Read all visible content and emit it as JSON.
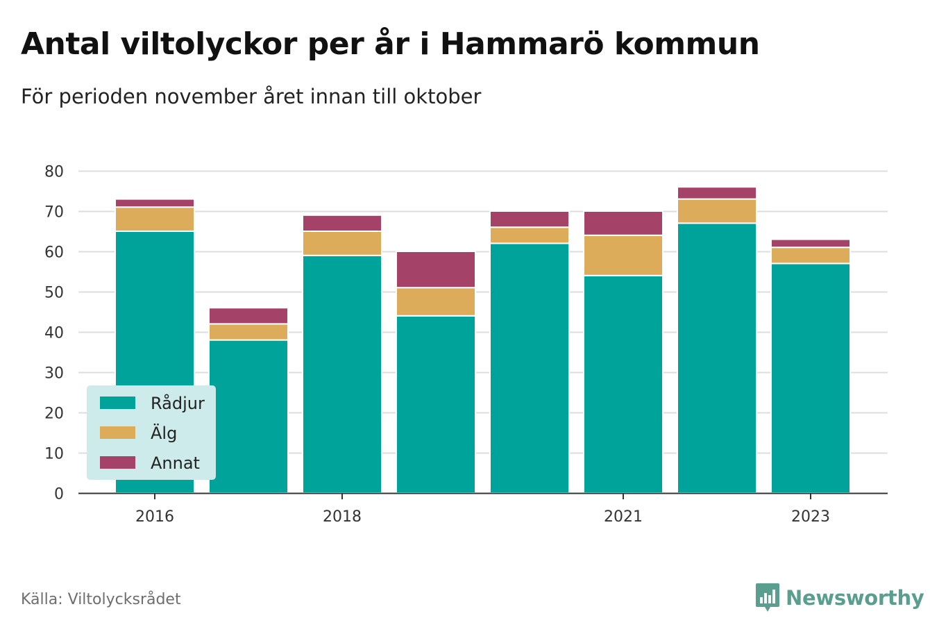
{
  "title": "Antal viltolyckor per år i Hammarö kommun",
  "subtitle": "För perioden november året innan till oktober",
  "source": "Källa: Viltolycksrådet",
  "brand": "Newsworthy",
  "colors": {
    "radjur": "#00a39a",
    "alg": "#dcac5a",
    "annat": "#a54268",
    "legend_bg": "#ccebea",
    "grid": "#dddddd",
    "axis": "#333333",
    "brand": "#5a9e8f"
  },
  "chart_data": {
    "type": "bar",
    "stacked": true,
    "categories": [
      "2016",
      "2017",
      "2018",
      "2019",
      "2020",
      "2021",
      "2022",
      "2023"
    ],
    "x_tick_labels": [
      "2016",
      "2018",
      "2021",
      "2023"
    ],
    "series": [
      {
        "name": "Rådjur",
        "color": "#00a39a",
        "values": [
          65,
          38,
          59,
          44,
          62,
          54,
          67,
          57
        ]
      },
      {
        "name": "Älg",
        "color": "#dcac5a",
        "values": [
          6,
          4,
          6,
          7,
          4,
          10,
          6,
          4
        ]
      },
      {
        "name": "Annat",
        "color": "#a54268",
        "values": [
          2,
          4,
          4,
          9,
          4,
          6,
          3,
          2
        ]
      }
    ],
    "y_ticks": [
      0,
      10,
      20,
      30,
      40,
      50,
      60,
      70,
      80
    ],
    "ylim": [
      0,
      80
    ],
    "grid": true,
    "legend_position": "bottom-left"
  }
}
